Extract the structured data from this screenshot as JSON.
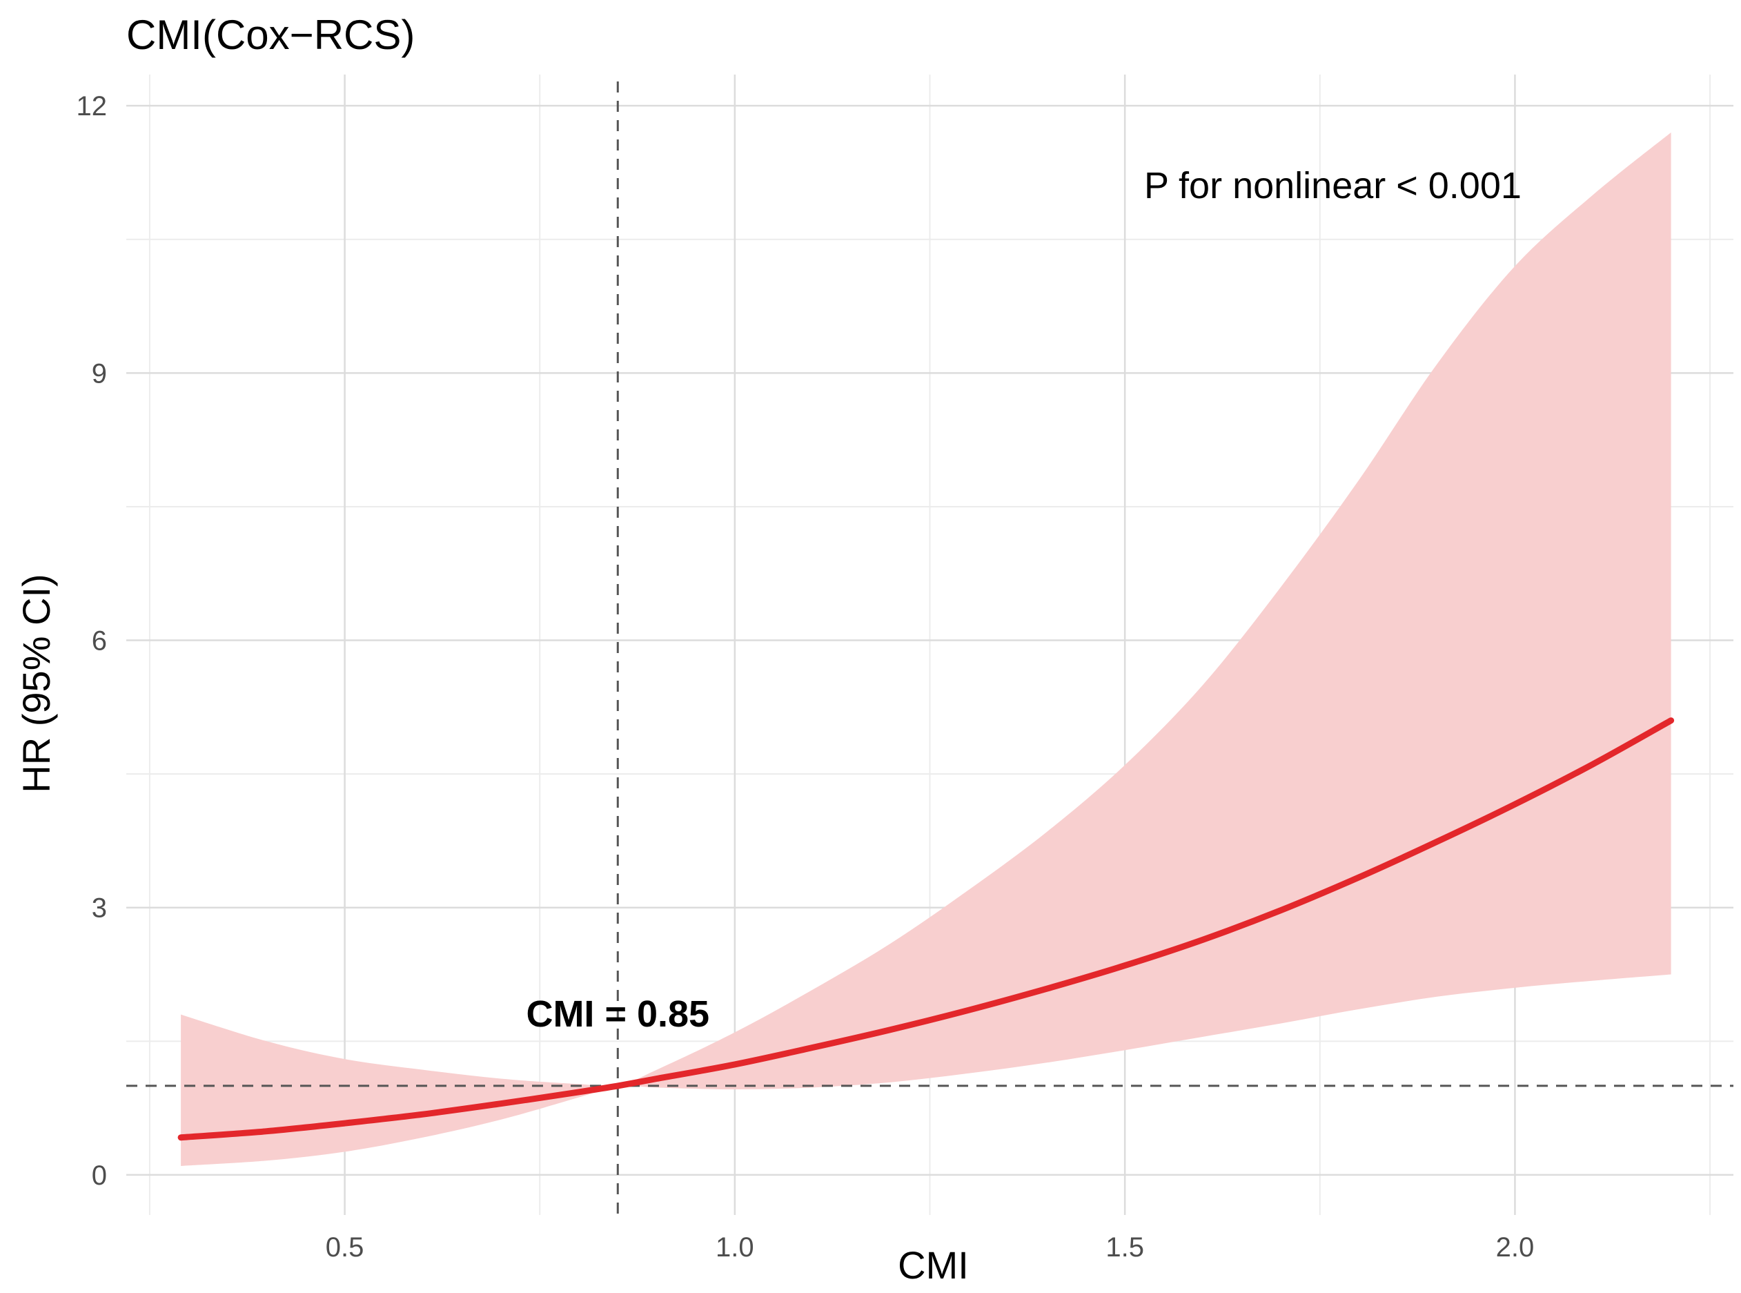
{
  "chart_data": {
    "type": "line",
    "title": "CMI(Cox−RCS)",
    "xlabel": "CMI",
    "ylabel": "HR (95% CI)",
    "xlim": [
      0.22,
      2.28
    ],
    "ylim": [
      -0.45,
      12.35
    ],
    "x_ticks": [
      0.5,
      1.0,
      1.5,
      2.0
    ],
    "x_tick_labels": [
      "0.5",
      "1.0",
      "1.5",
      "2.0"
    ],
    "y_ticks": [
      0,
      3,
      6,
      9,
      12
    ],
    "y_tick_labels": [
      "0",
      "3",
      "6",
      "9",
      "12"
    ],
    "grid": true,
    "reference_line_y": 1,
    "cutoff_x": 0.85,
    "cutoff_label": "CMI = 0.85",
    "annotation": "P for nonlinear < 0.001",
    "line_color": "#e3272b",
    "band_color": "#f8cfcf",
    "series": [
      {
        "x": [
          0.29,
          0.4,
          0.5,
          0.6,
          0.7,
          0.8,
          0.85,
          0.9,
          1.0,
          1.1,
          1.2,
          1.3,
          1.4,
          1.5,
          1.6,
          1.7,
          1.8,
          1.9,
          2.0,
          2.1,
          2.2
        ],
        "values": [
          0.42,
          0.49,
          0.58,
          0.68,
          0.8,
          0.93,
          1.0,
          1.08,
          1.24,
          1.43,
          1.63,
          1.85,
          2.09,
          2.35,
          2.64,
          2.97,
          3.34,
          3.74,
          4.16,
          4.61,
          5.1
        ],
        "lower": [
          0.1,
          0.16,
          0.26,
          0.42,
          0.62,
          0.87,
          1.0,
          0.98,
          0.96,
          0.98,
          1.04,
          1.14,
          1.26,
          1.4,
          1.55,
          1.7,
          1.86,
          2.0,
          2.1,
          2.18,
          2.25
        ],
        "upper": [
          1.8,
          1.5,
          1.3,
          1.18,
          1.08,
          1.02,
          1.0,
          1.18,
          1.6,
          2.08,
          2.6,
          3.2,
          3.85,
          4.6,
          5.5,
          6.6,
          7.8,
          9.1,
          10.2,
          11.0,
          11.7
        ]
      }
    ]
  }
}
